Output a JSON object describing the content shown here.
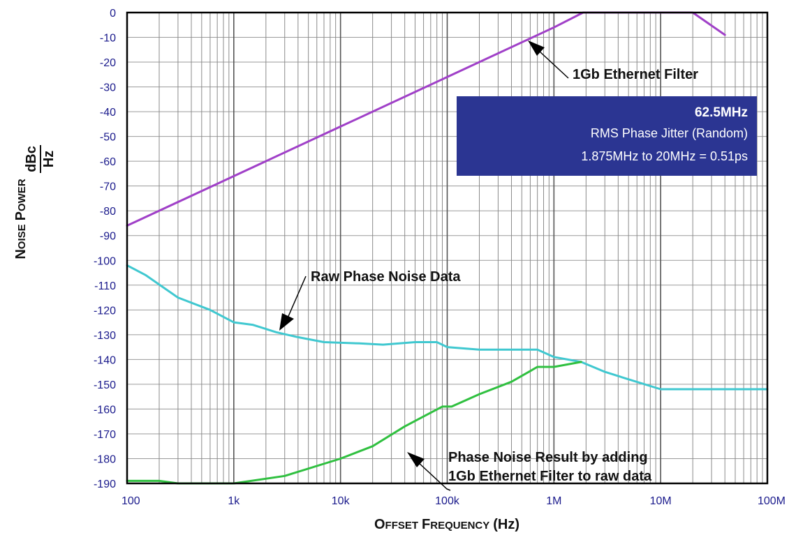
{
  "chart_data": {
    "type": "line",
    "x_scale": "log",
    "xlim": [
      100,
      100000000
    ],
    "ylim": [
      -190,
      0
    ],
    "x_ticks": [
      100,
      1000,
      10000,
      100000,
      1000000,
      10000000,
      100000000
    ],
    "x_tick_labels": [
      "100",
      "1k",
      "10k",
      "100k",
      "1M",
      "10M",
      "100M"
    ],
    "y_ticks": [
      0,
      -10,
      -20,
      -30,
      -40,
      -50,
      -60,
      -70,
      -80,
      -90,
      -100,
      -110,
      -120,
      -130,
      -140,
      -150,
      -160,
      -170,
      -180,
      -190
    ],
    "y_tick_labels": [
      "0",
      "-10",
      "-20",
      "-30",
      "-40",
      "-50",
      "-60",
      "-70",
      "-80",
      "-90",
      "-100",
      "-110",
      "-120",
      "-130",
      "-140",
      "-150",
      "-160",
      "-170",
      "-180",
      "-190"
    ],
    "xlabel_parts": {
      "big1": "O",
      "small1": "FFSET",
      "big2": "F",
      "small2": "REQUENCY",
      "unit": "(Hz)"
    },
    "ylabel_parts": {
      "big1": "N",
      "small1": "OISE",
      "big2": "P",
      "small2": "OWER",
      "num": "dBc",
      "den": "Hz"
    },
    "grid": true,
    "series": [
      {
        "color": "#a040c8",
        "points": [
          [
            100,
            -86
          ],
          [
            1000,
            -66
          ],
          [
            10000,
            -46
          ],
          [
            100000,
            -26
          ],
          [
            1000000,
            -6
          ],
          [
            1875000,
            0
          ],
          [
            20000000,
            0
          ],
          [
            40000000,
            -9
          ]
        ]
      },
      {
        "color": "#40c8d0",
        "points": [
          [
            100,
            -102
          ],
          [
            150,
            -106
          ],
          [
            300,
            -115
          ],
          [
            600,
            -120
          ],
          [
            1000,
            -125
          ],
          [
            1500,
            -126
          ],
          [
            2500,
            -129
          ],
          [
            4000,
            -131
          ],
          [
            7000,
            -133
          ],
          [
            15000,
            -133.5
          ],
          [
            25000,
            -134
          ],
          [
            50000,
            -133
          ],
          [
            80000,
            -133
          ],
          [
            100000,
            -135
          ],
          [
            200000,
            -136
          ],
          [
            700000,
            -136
          ],
          [
            1000000,
            -139
          ],
          [
            1800000,
            -141
          ],
          [
            3000000,
            -145
          ],
          [
            5000000,
            -148
          ],
          [
            10000000,
            -152
          ],
          [
            100000000,
            -152
          ]
        ]
      },
      {
        "color": "#30c040",
        "points": [
          [
            100,
            -189
          ],
          [
            200,
            -189
          ],
          [
            300,
            -190
          ],
          [
            1000,
            -190
          ],
          [
            3000,
            -187
          ],
          [
            10000,
            -180
          ],
          [
            20000,
            -175
          ],
          [
            40000,
            -167
          ],
          [
            60000,
            -163
          ],
          [
            90000,
            -159
          ],
          [
            110000,
            -159
          ],
          [
            200000,
            -154
          ],
          [
            400000,
            -149
          ],
          [
            700000,
            -143
          ],
          [
            1000000,
            -143
          ],
          [
            1800000,
            -141
          ]
        ]
      }
    ],
    "annotations": [
      {
        "text": "1Gb Ethernet Filter",
        "target": [
          1150000,
          -9
        ]
      },
      {
        "text": "Raw Phase Noise Data",
        "target": [
          2800000,
          -128
        ]
      },
      {
        "line1": "Phase Noise Result by adding",
        "line2": "1Gb Ethernet Filter to raw data",
        "target": [
          41000,
          -168
        ]
      }
    ],
    "infobox": {
      "title": "62.5MHz",
      "line1": "RMS Phase Jitter (Random)",
      "line2": "1.875MHz to 20MHz = 0.51ps",
      "bg": "#2b3592"
    }
  }
}
